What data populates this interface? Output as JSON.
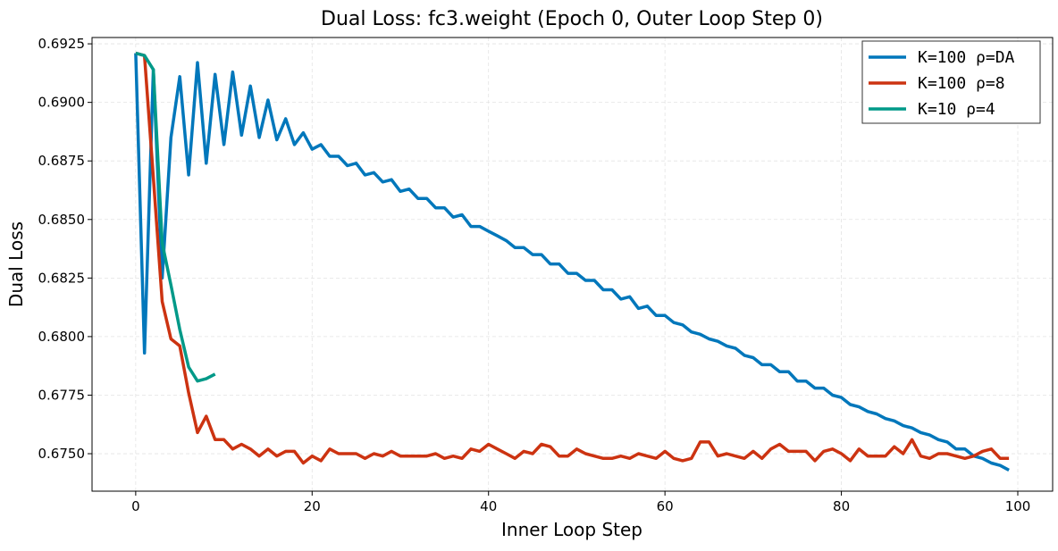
{
  "chart_data": {
    "type": "line",
    "title": "Dual Loss: fc3.weight (Epoch 0, Outer Loop Step 0)",
    "xlabel": "Inner Loop Step",
    "ylabel": "Dual Loss",
    "xlim": [
      -4.95,
      103.95
    ],
    "ylim": [
      0.6734,
      0.69277
    ],
    "xticks": [
      0,
      20,
      40,
      60,
      80,
      100
    ],
    "yticks": [
      0.675,
      0.6775,
      0.68,
      0.6825,
      0.685,
      0.6875,
      0.69,
      0.6925
    ],
    "grid": true,
    "legend_placement": "top-right",
    "series": [
      {
        "name": "K=100  ρ=DA",
        "color": "#0077bb",
        "values": [
          0.6921,
          0.6793,
          0.6914,
          0.6825,
          0.6885,
          0.6911,
          0.6869,
          0.6917,
          0.6874,
          0.6912,
          0.6882,
          0.6913,
          0.6886,
          0.6907,
          0.6885,
          0.6901,
          0.6884,
          0.6893,
          0.6882,
          0.6887,
          0.688,
          0.6882,
          0.6877,
          0.6877,
          0.6873,
          0.6874,
          0.6869,
          0.687,
          0.6866,
          0.6867,
          0.6862,
          0.6863,
          0.6859,
          0.6859,
          0.6855,
          0.6855,
          0.6851,
          0.6852,
          0.6847,
          0.6847,
          0.6845,
          0.6843,
          0.6841,
          0.6838,
          0.6838,
          0.6835,
          0.6835,
          0.6831,
          0.6831,
          0.6827,
          0.6827,
          0.6824,
          0.6824,
          0.682,
          0.682,
          0.6816,
          0.6817,
          0.6812,
          0.6813,
          0.6809,
          0.6809,
          0.6806,
          0.6805,
          0.6802,
          0.6801,
          0.6799,
          0.6798,
          0.6796,
          0.6795,
          0.6792,
          0.6791,
          0.6788,
          0.6788,
          0.6785,
          0.6785,
          0.6781,
          0.6781,
          0.6778,
          0.6778,
          0.6775,
          0.6774,
          0.6771,
          0.677,
          0.6768,
          0.6767,
          0.6765,
          0.6764,
          0.6762,
          0.6761,
          0.6759,
          0.6758,
          0.6756,
          0.6755,
          0.6752,
          0.6752,
          0.6749,
          0.6748,
          0.6746,
          0.6745,
          0.6743
        ]
      },
      {
        "name": "K=100  ρ=8",
        "color": "#cc3311",
        "values": [
          0.6921,
          0.692,
          0.6868,
          0.6815,
          0.6799,
          0.6796,
          0.6776,
          0.6759,
          0.6766,
          0.6756,
          0.6756,
          0.6752,
          0.6754,
          0.6752,
          0.6749,
          0.6752,
          0.6749,
          0.6751,
          0.6751,
          0.6746,
          0.6749,
          0.6747,
          0.6752,
          0.675,
          0.675,
          0.675,
          0.6748,
          0.675,
          0.6749,
          0.6751,
          0.6749,
          0.6749,
          0.6749,
          0.6749,
          0.675,
          0.6748,
          0.6749,
          0.6748,
          0.6752,
          0.6751,
          0.6754,
          0.6752,
          0.675,
          0.6748,
          0.6751,
          0.675,
          0.6754,
          0.6753,
          0.6749,
          0.6749,
          0.6752,
          0.675,
          0.6749,
          0.6748,
          0.6748,
          0.6749,
          0.6748,
          0.675,
          0.6749,
          0.6748,
          0.6751,
          0.6748,
          0.6747,
          0.6748,
          0.6755,
          0.6755,
          0.6749,
          0.675,
          0.6749,
          0.6748,
          0.6751,
          0.6748,
          0.6752,
          0.6754,
          0.6751,
          0.6751,
          0.6751,
          0.6747,
          0.6751,
          0.6752,
          0.675,
          0.6747,
          0.6752,
          0.6749,
          0.6749,
          0.6749,
          0.6753,
          0.675,
          0.6756,
          0.6749,
          0.6748,
          0.675,
          0.675,
          0.6749,
          0.6748,
          0.6749,
          0.6751,
          0.6752,
          0.6748,
          0.6748
        ]
      },
      {
        "name": "K=10   ρ=4",
        "color": "#009988",
        "values": [
          0.6921,
          0.692,
          0.6914,
          0.684,
          0.6822,
          0.6803,
          0.6787,
          0.6781,
          0.6782,
          0.6784
        ]
      }
    ]
  }
}
